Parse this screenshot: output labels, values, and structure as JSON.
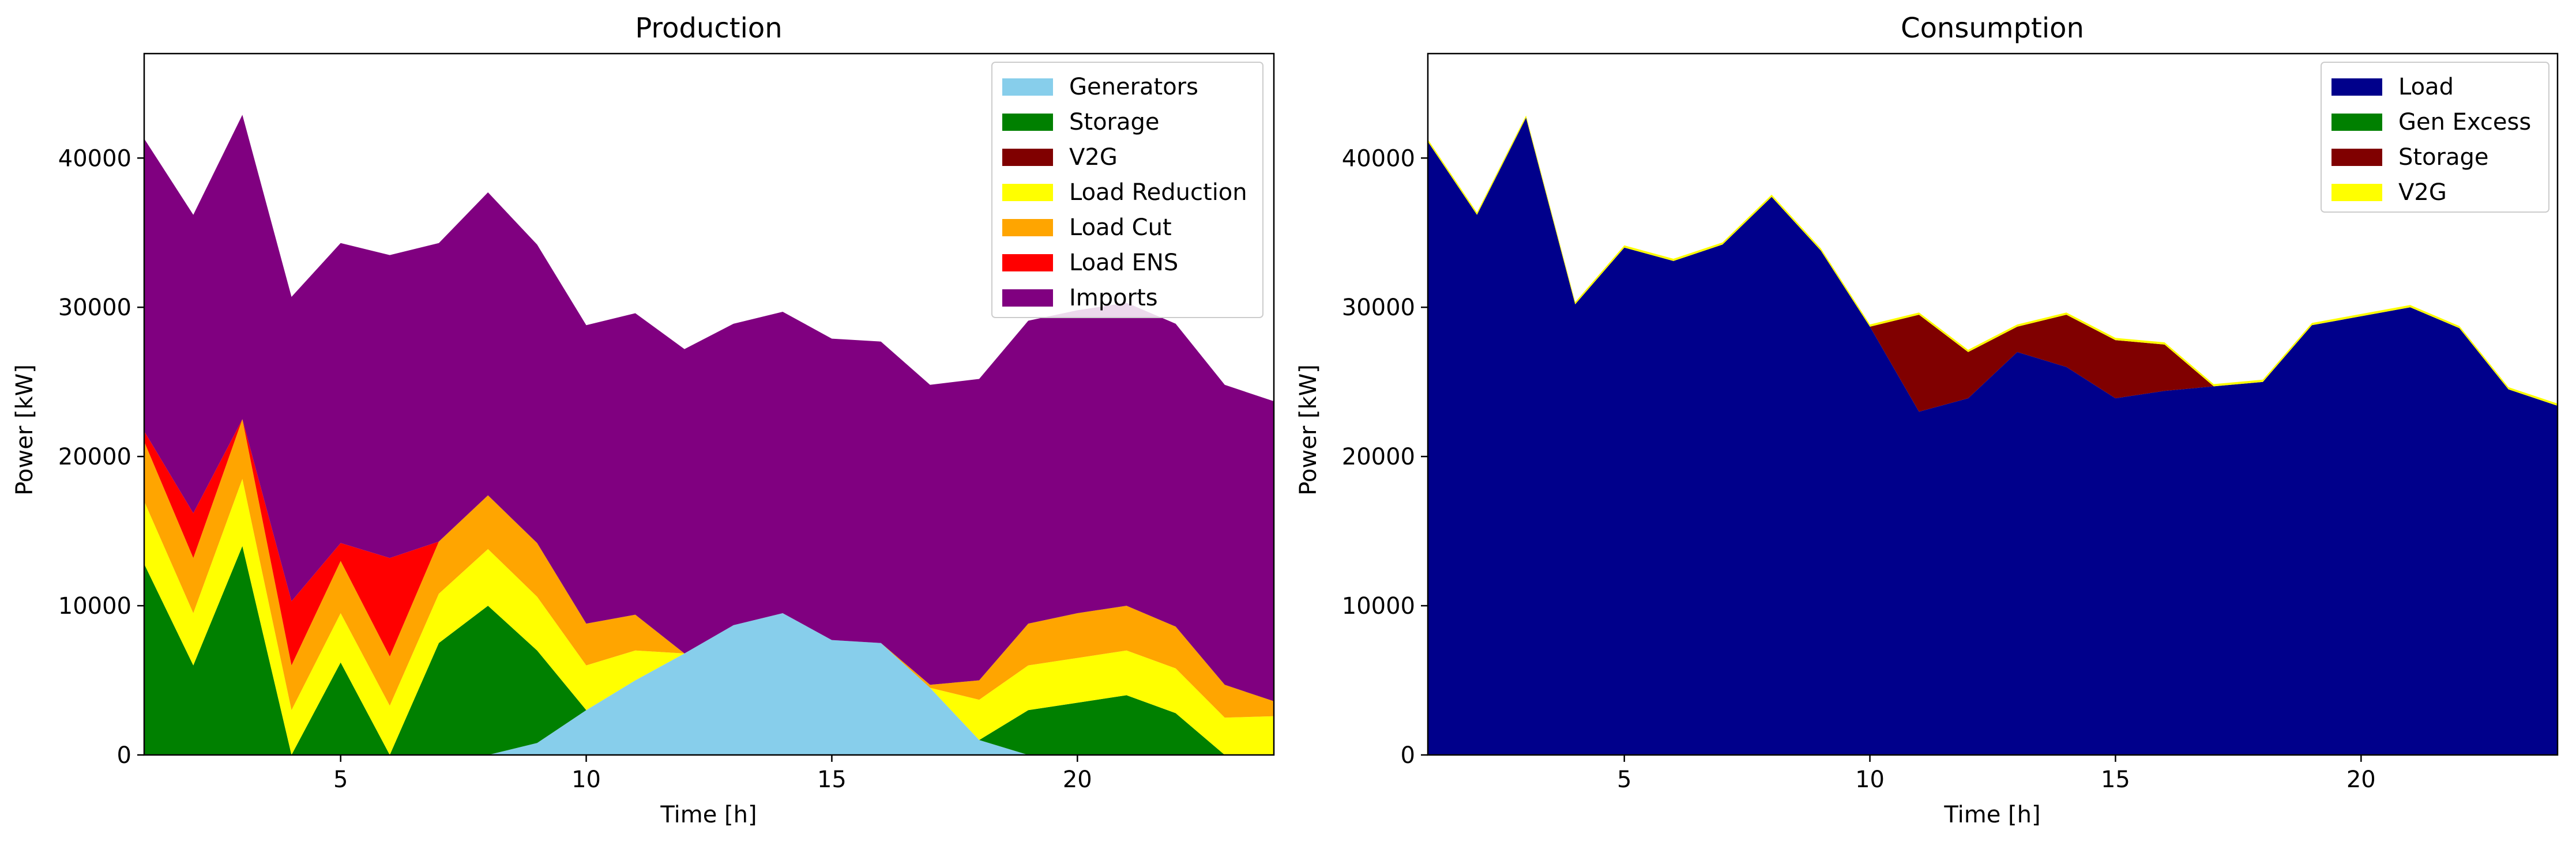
{
  "chart_data": [
    {
      "type": "area",
      "stacked": true,
      "title": "Production",
      "xlabel": "Time [h]",
      "ylabel": "Power [kW]",
      "xlim": [
        1,
        24
      ],
      "ylim": [
        0,
        47000
      ],
      "xticks": [
        5,
        10,
        15,
        20
      ],
      "yticks": [
        0,
        10000,
        20000,
        30000,
        40000
      ],
      "grid": false,
      "legend_position": "top-right",
      "x": [
        1,
        2,
        3,
        4,
        5,
        6,
        7,
        8,
        9,
        10,
        11,
        12,
        13,
        14,
        15,
        16,
        17,
        18,
        19,
        20,
        21,
        22,
        23,
        24
      ],
      "series": [
        {
          "name": "Generators",
          "color": "#87ceeb",
          "values": [
            0,
            0,
            0,
            0,
            0,
            0,
            0,
            0,
            800,
            3000,
            5000,
            6800,
            8700,
            9500,
            7700,
            7500,
            4500,
            1000,
            0,
            0,
            0,
            0,
            0,
            0
          ]
        },
        {
          "name": "Storage",
          "color": "#008000",
          "values": [
            12800,
            6000,
            14000,
            0,
            6200,
            0,
            7500,
            10000,
            6200,
            0,
            0,
            0,
            0,
            0,
            0,
            0,
            0,
            0,
            3000,
            3500,
            4000,
            2800,
            0,
            0
          ]
        },
        {
          "name": "V2G",
          "color": "#800000",
          "values": [
            0,
            0,
            0,
            0,
            0,
            0,
            0,
            0,
            0,
            0,
            0,
            0,
            0,
            0,
            0,
            0,
            0,
            0,
            0,
            0,
            0,
            0,
            0,
            0
          ]
        },
        {
          "name": "Load Reduction",
          "color": "#ffff00",
          "values": [
            4200,
            3500,
            4500,
            3000,
            3300,
            3300,
            3300,
            3800,
            3600,
            3000,
            2000,
            0,
            0,
            0,
            0,
            0,
            0,
            2700,
            3000,
            3000,
            3000,
            3000,
            2500,
            2600
          ]
        },
        {
          "name": "Load Cut",
          "color": "#ffa500",
          "values": [
            4000,
            3700,
            4000,
            3000,
            3500,
            3300,
            3500,
            3600,
            3600,
            2800,
            2400,
            0,
            0,
            0,
            0,
            0,
            200,
            1300,
            2800,
            3000,
            3000,
            2800,
            2200,
            1000
          ]
        },
        {
          "name": "Load ENS",
          "color": "#ff0000",
          "values": [
            700,
            3000,
            0,
            4300,
            1200,
            6600,
            0,
            0,
            0,
            0,
            0,
            0,
            0,
            0,
            0,
            0,
            0,
            0,
            0,
            0,
            0,
            0,
            0,
            0
          ]
        },
        {
          "name": "Imports",
          "color": "#800080",
          "values": [
            19600,
            20000,
            20400,
            20400,
            20100,
            20300,
            20000,
            20300,
            20000,
            20000,
            20200,
            20400,
            20200,
            20200,
            20200,
            20200,
            20100,
            20200,
            20300,
            20300,
            20300,
            20300,
            20100,
            20100
          ]
        }
      ]
    },
    {
      "type": "area",
      "stacked": true,
      "title": "Consumption",
      "xlabel": "Time [h]",
      "ylabel": "Power [kW]",
      "xlim": [
        1,
        24
      ],
      "ylim": [
        0,
        47000
      ],
      "xticks": [
        5,
        10,
        15,
        20
      ],
      "yticks": [
        0,
        10000,
        20000,
        30000,
        40000
      ],
      "grid": false,
      "legend_position": "top-right",
      "x": [
        1,
        2,
        3,
        4,
        5,
        6,
        7,
        8,
        9,
        10,
        11,
        12,
        13,
        14,
        15,
        16,
        17,
        18,
        19,
        20,
        21,
        22,
        23,
        24
      ],
      "series": [
        {
          "name": "Load",
          "color": "#00008b",
          "values": [
            41100,
            36200,
            42700,
            30200,
            34000,
            33100,
            34200,
            37400,
            33800,
            28700,
            23000,
            23900,
            27000,
            26000,
            23900,
            24400,
            24700,
            25000,
            28800,
            29400,
            30000,
            28600,
            24500,
            23400
          ]
        },
        {
          "name": "Gen Excess",
          "color": "#008000",
          "values": [
            0,
            0,
            0,
            0,
            0,
            0,
            0,
            0,
            0,
            0,
            0,
            0,
            0,
            0,
            0,
            0,
            0,
            0,
            0,
            0,
            0,
            0,
            0,
            0
          ]
        },
        {
          "name": "Storage",
          "color": "#800000",
          "values": [
            0,
            0,
            0,
            0,
            0,
            0,
            0,
            0,
            0,
            0,
            6500,
            3100,
            1700,
            3500,
            3900,
            3100,
            0,
            0,
            0,
            0,
            0,
            0,
            0,
            0
          ]
        },
        {
          "name": "V2G",
          "color": "#ffff00",
          "values": [
            150,
            150,
            150,
            150,
            150,
            150,
            150,
            150,
            150,
            150,
            150,
            150,
            150,
            150,
            150,
            150,
            150,
            150,
            150,
            150,
            150,
            150,
            150,
            150
          ]
        }
      ]
    }
  ]
}
